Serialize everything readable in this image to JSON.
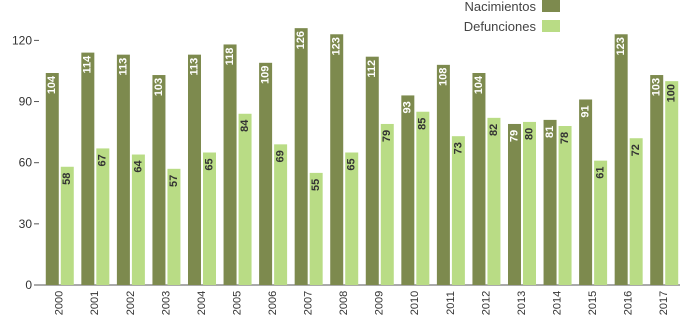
{
  "chart_data": {
    "type": "bar",
    "categories": [
      "2000",
      "2001",
      "2002",
      "2003",
      "2004",
      "2005",
      "2006",
      "2007",
      "2008",
      "2009",
      "2010",
      "2011",
      "2012",
      "2013",
      "2014",
      "2015",
      "2016",
      "2017"
    ],
    "series": [
      {
        "name": "Nacimientos",
        "color": "#7d8a4e",
        "label_color": "#ffffff",
        "values": [
          104,
          114,
          113,
          103,
          113,
          118,
          109,
          126,
          123,
          112,
          93,
          108,
          104,
          79,
          81,
          91,
          123,
          103
        ]
      },
      {
        "name": "Defunciones",
        "color": "#b9dc85",
        "label_color": "#333333",
        "values": [
          58,
          67,
          64,
          57,
          65,
          84,
          69,
          55,
          65,
          79,
          85,
          73,
          82,
          80,
          78,
          61,
          72,
          100
        ]
      }
    ],
    "yticks": [
      0,
      30,
      60,
      90,
      120
    ],
    "ylim": [
      0,
      130
    ],
    "grid": false,
    "legend_position": "top-right"
  }
}
